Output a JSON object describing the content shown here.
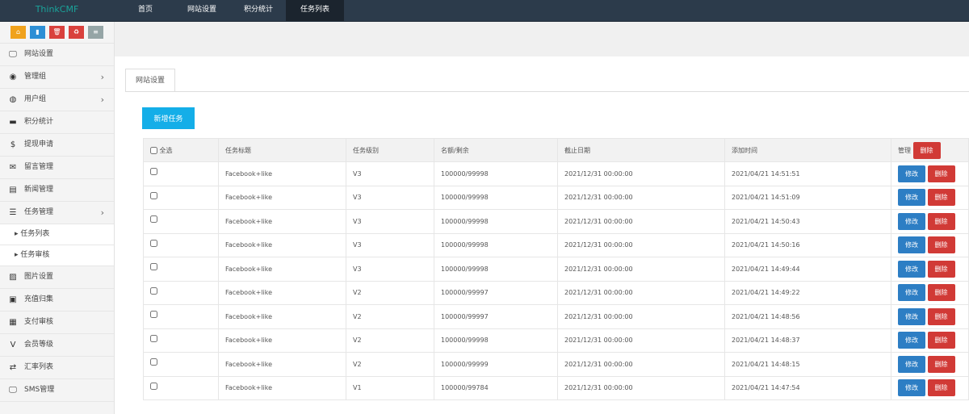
{
  "topbar": {
    "brand": "ThinkCMF",
    "nav": [
      {
        "label": "首页",
        "active": false
      },
      {
        "label": "网站设置",
        "active": false
      },
      {
        "label": "积分统计",
        "active": false
      },
      {
        "label": "任务列表",
        "active": true
      }
    ]
  },
  "shortcuts": [
    {
      "icon": "home-icon",
      "color": "#f0a21c"
    },
    {
      "icon": "file-icon",
      "color": "#2d8fd5"
    },
    {
      "icon": "trash-icon",
      "color": "#d9413d"
    },
    {
      "icon": "recycle-icon",
      "color": "#d9413d"
    },
    {
      "icon": "list-icon",
      "color": "#95a5a6"
    }
  ],
  "sidebar": {
    "items": [
      {
        "label": "网站设置",
        "icon": "monitor-icon",
        "chev": false
      },
      {
        "label": "管理组",
        "icon": "user-circle-icon",
        "chev": true
      },
      {
        "label": "用户组",
        "icon": "user-icon",
        "chev": true
      },
      {
        "label": "积分统计",
        "icon": "visa-icon",
        "chev": false
      },
      {
        "label": "提现申请",
        "icon": "dollar-icon",
        "chev": false
      },
      {
        "label": "留言管理",
        "icon": "envelope-open-icon",
        "chev": false
      },
      {
        "label": "新闻管理",
        "icon": "newspaper-icon",
        "chev": false
      },
      {
        "label": "任务管理",
        "icon": "tasks-icon",
        "chev": true
      }
    ],
    "sub": [
      "任务列表",
      "任务审核"
    ],
    "items2": [
      {
        "label": "图片设置",
        "icon": "image-icon"
      },
      {
        "label": "充值归集",
        "icon": "money-icon"
      },
      {
        "label": "支付审核",
        "icon": "id-card-icon"
      },
      {
        "label": "会员等级",
        "icon": "vine-icon"
      },
      {
        "label": "汇率列表",
        "icon": "exchange-icon"
      },
      {
        "label": "SMS管理",
        "icon": "desktop-icon"
      }
    ]
  },
  "main": {
    "tab": "网站设置",
    "add_button": "新增任务",
    "headers": {
      "select_all": "全选",
      "title": "任务标题",
      "level": "任务级别",
      "quota": "名额/剩余",
      "deadline": "截止日期",
      "added": "添加时间",
      "manage": "管理",
      "bulk_delete": "删除"
    },
    "edit_label": "修改",
    "delete_label": "删除",
    "rows": [
      {
        "title": "Facebook+like",
        "level": "V3",
        "quota": "100000/99998",
        "deadline": "2021/12/31 00:00:00",
        "added": "2021/04/21 14:51:51"
      },
      {
        "title": "Facebook+like",
        "level": "V3",
        "quota": "100000/99998",
        "deadline": "2021/12/31 00:00:00",
        "added": "2021/04/21 14:51:09"
      },
      {
        "title": "Facebook+like",
        "level": "V3",
        "quota": "100000/99998",
        "deadline": "2021/12/31 00:00:00",
        "added": "2021/04/21 14:50:43"
      },
      {
        "title": "Facebook+like",
        "level": "V3",
        "quota": "100000/99998",
        "deadline": "2021/12/31 00:00:00",
        "added": "2021/04/21 14:50:16"
      },
      {
        "title": "Facebook+like",
        "level": "V3",
        "quota": "100000/99998",
        "deadline": "2021/12/31 00:00:00",
        "added": "2021/04/21 14:49:44"
      },
      {
        "title": "Facebook+like",
        "level": "V2",
        "quota": "100000/99997",
        "deadline": "2021/12/31 00:00:00",
        "added": "2021/04/21 14:49:22"
      },
      {
        "title": "Facebook+like",
        "level": "V2",
        "quota": "100000/99997",
        "deadline": "2021/12/31 00:00:00",
        "added": "2021/04/21 14:48:56"
      },
      {
        "title": "Facebook+like",
        "level": "V2",
        "quota": "100000/99998",
        "deadline": "2021/12/31 00:00:00",
        "added": "2021/04/21 14:48:37"
      },
      {
        "title": "Facebook+like",
        "level": "V2",
        "quota": "100000/99999",
        "deadline": "2021/12/31 00:00:00",
        "added": "2021/04/21 14:48:15"
      },
      {
        "title": "Facebook+like",
        "level": "V1",
        "quota": "100000/99784",
        "deadline": "2021/12/31 00:00:00",
        "added": "2021/04/21 14:47:54"
      }
    ]
  }
}
